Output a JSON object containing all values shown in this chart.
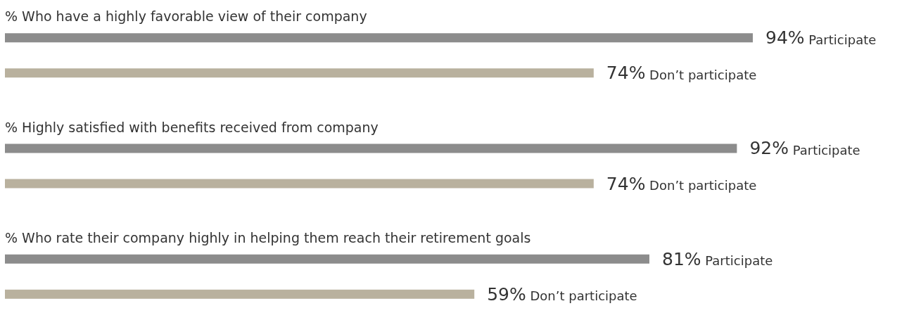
{
  "chart_data": {
    "type": "bar",
    "orientation": "horizontal",
    "categories": [
      "% Who have a highly favorable view of their company",
      "% Highly satisfied with benefits received from company",
      "% Who rate their company highly in helping them reach their retirement goals"
    ],
    "series": [
      {
        "name": "Participate",
        "color": "#8c8c8c",
        "values": [
          94,
          92,
          81
        ],
        "value_labels": [
          "94%",
          "92%",
          "81%"
        ]
      },
      {
        "name": "Don’t participate",
        "color": "#b9b19e",
        "values": [
          74,
          74,
          59
        ],
        "value_labels": [
          "74%",
          "74%",
          "59%"
        ]
      }
    ],
    "tick_labels": "y",
    "legend": false
  }
}
